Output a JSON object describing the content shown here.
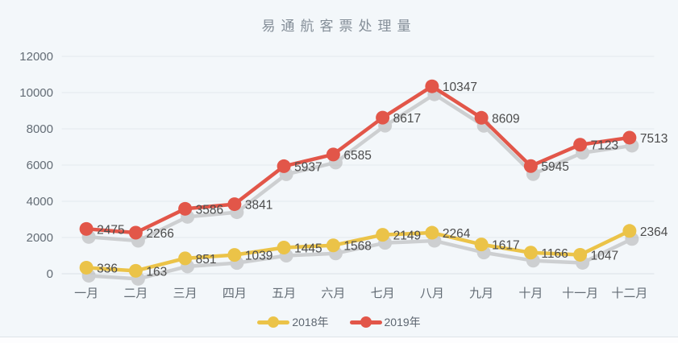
{
  "title": "易通航客票处理量",
  "colors": {
    "background": "#f3f7fa",
    "grid_line": "#e3e9ee",
    "baseline": "#dbe1e7",
    "axis_label": "#636c75",
    "data_label": "#4c4c4c",
    "title_text": "#848e98",
    "shadow": "#a9a9a9",
    "series_2018": "#ebc348",
    "series_2019": "#e25649"
  },
  "legend": {
    "items": [
      {
        "label": "2018年",
        "color": "#ebc348"
      },
      {
        "label": "2019年",
        "color": "#e25649"
      }
    ]
  },
  "chart_data": {
    "type": "line",
    "title": "易通航客票处理量",
    "categories": [
      "一月",
      "二月",
      "三月",
      "四月",
      "五月",
      "六月",
      "七月",
      "八月",
      "九月",
      "十月",
      "十一月",
      "十二月"
    ],
    "series": [
      {
        "name": "2018年",
        "color": "#ebc348",
        "values": [
          336,
          163,
          851,
          1039,
          1445,
          1568,
          2149,
          2264,
          1617,
          1166,
          1047,
          2364
        ]
      },
      {
        "name": "2019年",
        "color": "#e25649",
        "values": [
          2475,
          2266,
          3586,
          3841,
          5937,
          6585,
          8617,
          10347,
          8609,
          5945,
          7123,
          7513
        ]
      }
    ],
    "xlabel": "",
    "ylabel": "",
    "ylim": [
      0,
      12000
    ],
    "yticks": [
      0,
      2000,
      4000,
      6000,
      8000,
      10000,
      12000
    ],
    "grid": true,
    "data_labels": true,
    "marker_shadow": true,
    "legend_position": "bottom"
  }
}
